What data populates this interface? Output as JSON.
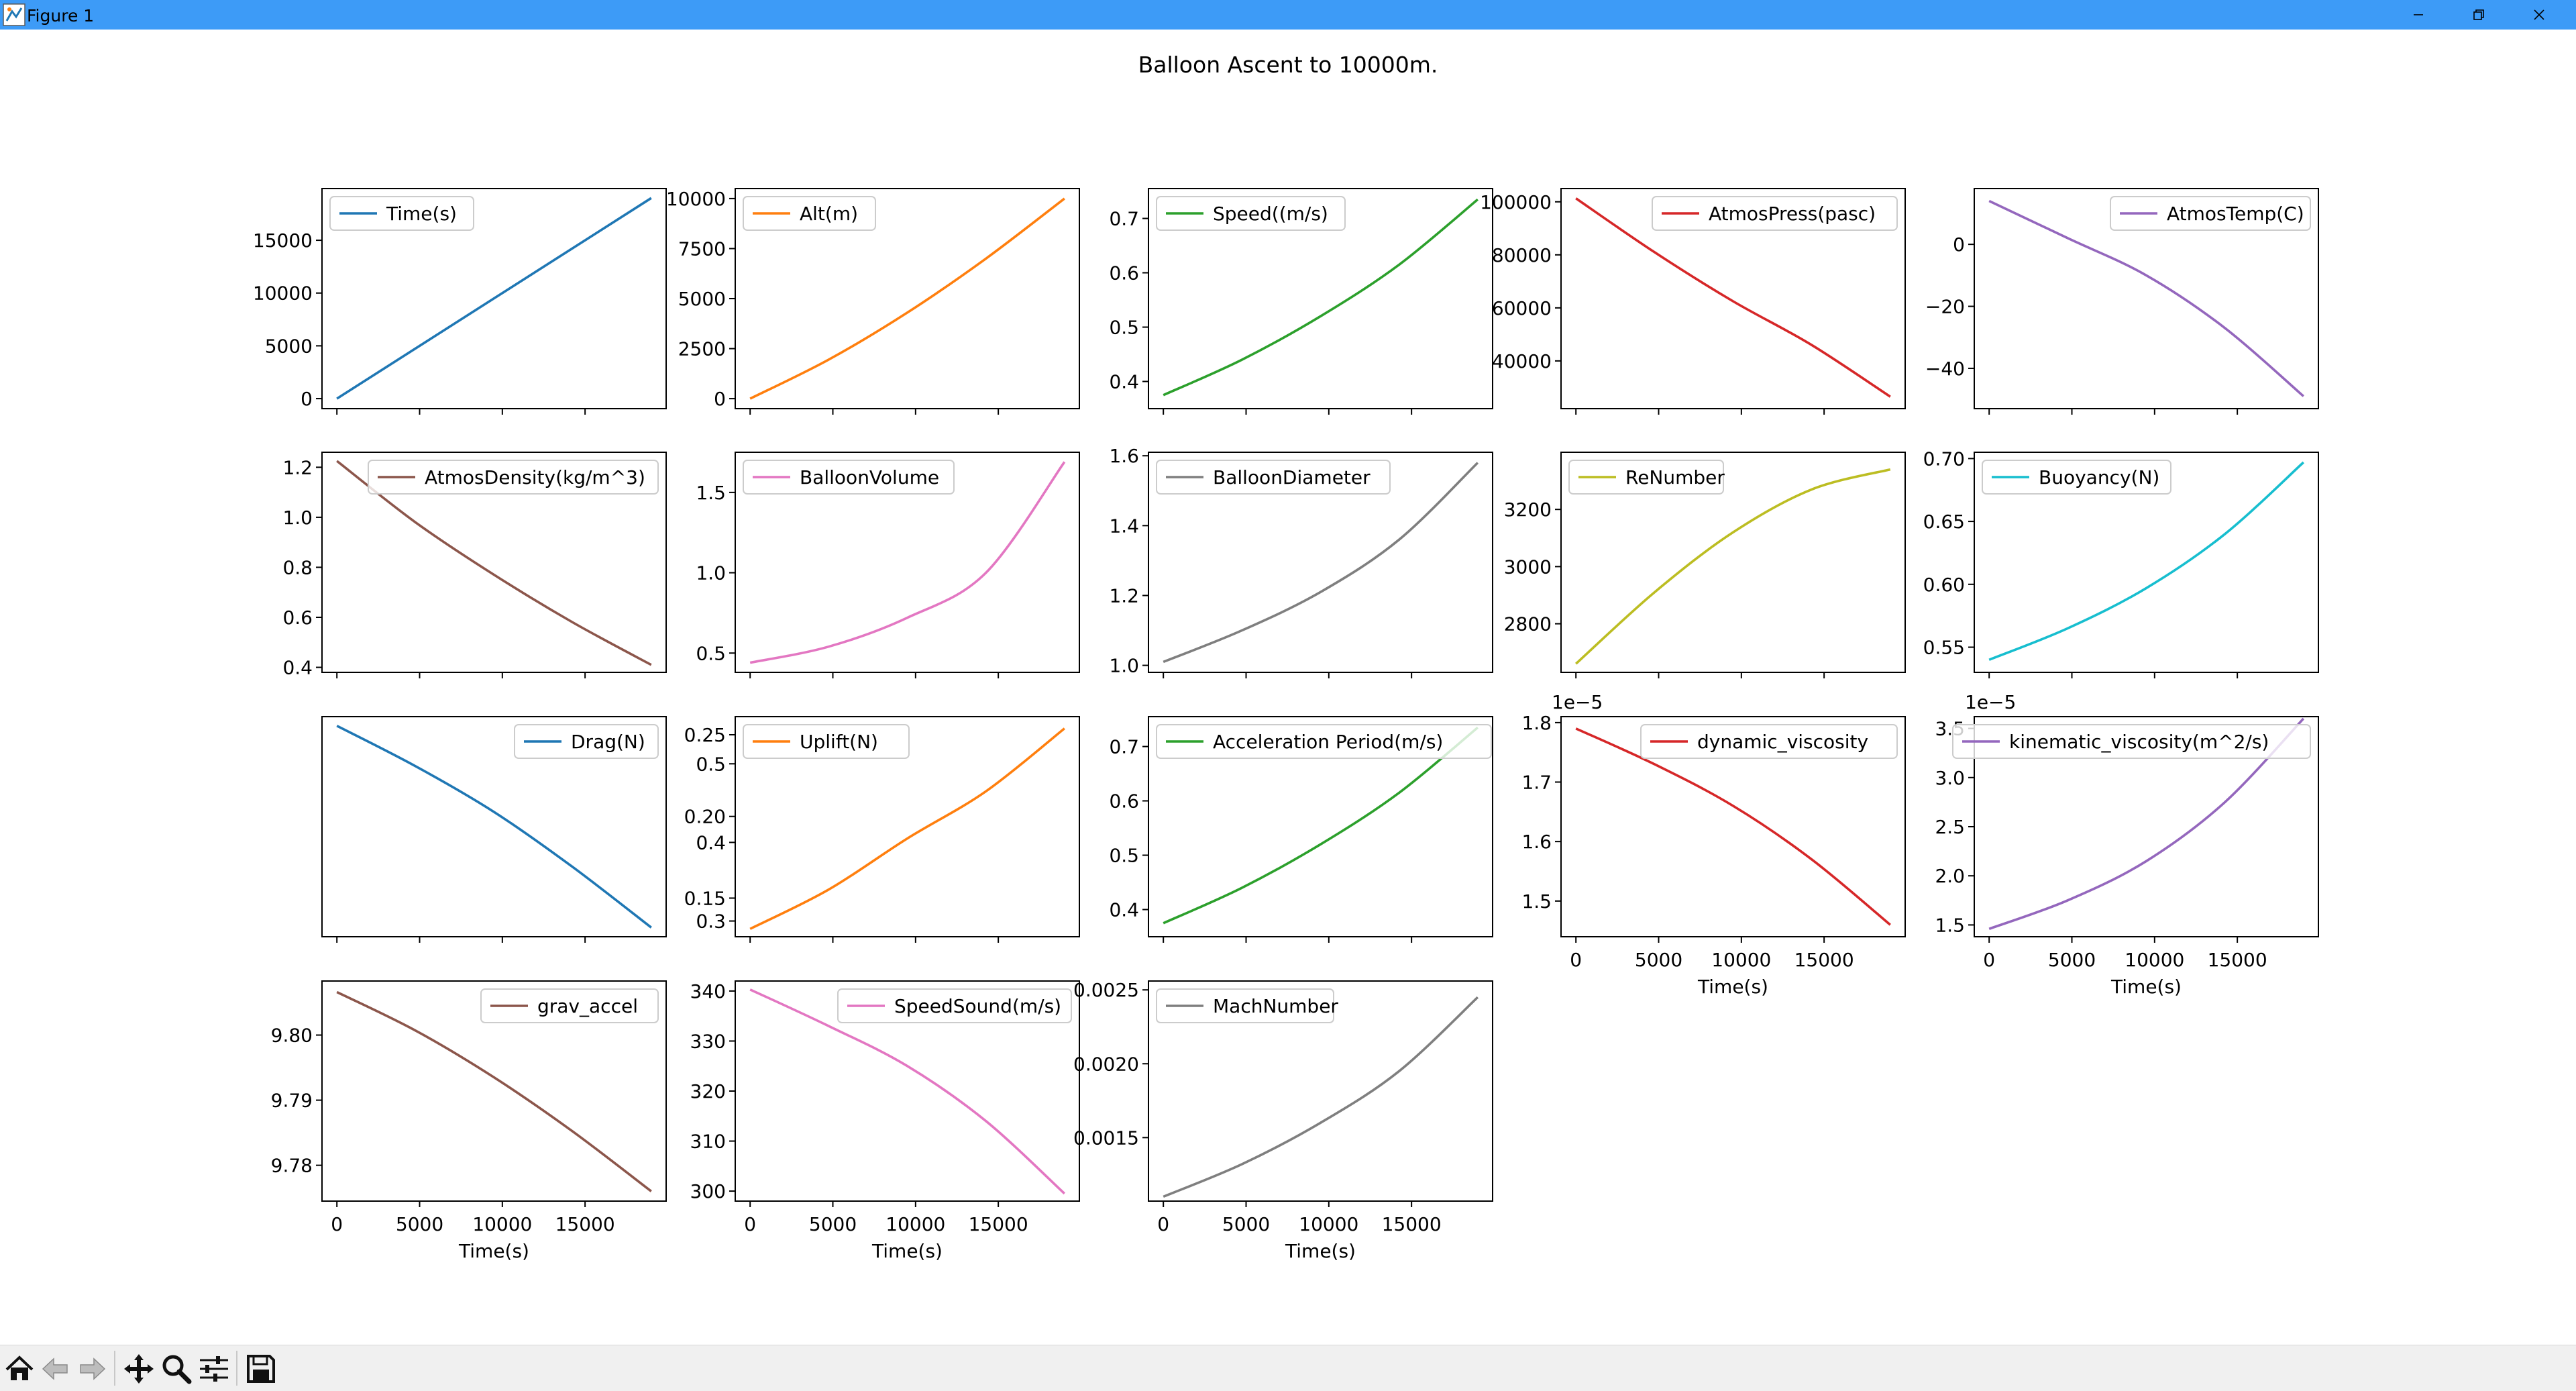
{
  "window": {
    "title": "Figure 1",
    "icon": "matplotlib-figure-icon"
  },
  "toolbar": {
    "items": [
      {
        "name": "home-button",
        "icon": "home-icon"
      },
      {
        "name": "back-button",
        "icon": "arrow-left-icon"
      },
      {
        "name": "forward-button",
        "icon": "arrow-right-icon"
      },
      {
        "name": "pan-button",
        "icon": "move-icon"
      },
      {
        "name": "zoom-button",
        "icon": "magnifier-icon"
      },
      {
        "name": "subplots-button",
        "icon": "sliders-icon"
      },
      {
        "name": "save-button",
        "icon": "floppy-disk-icon"
      }
    ]
  },
  "figure": {
    "suptitle": "Balloon Ascent to 10000m."
  },
  "chart_data": [
    {
      "type": "line",
      "legend": "Time(s)",
      "color": "#1f77b4",
      "xlim": [
        -900,
        19900
      ],
      "ylim": [
        -950,
        19900
      ],
      "yticks": [
        {
          "v": 0,
          "l": "0"
        },
        {
          "v": 5000,
          "l": "5000"
        },
        {
          "v": 10000,
          "l": "10000"
        },
        {
          "v": 15000,
          "l": "15000"
        }
      ],
      "xticks": [
        0,
        5000,
        10000,
        15000
      ],
      "xlabel": "",
      "legend_loc": "upper left",
      "x": [
        0,
        19000
      ],
      "y": [
        0,
        19000
      ]
    },
    {
      "type": "line",
      "legend": "Alt(m)",
      "color": "#ff7f0e",
      "xlim": [
        -900,
        19900
      ],
      "ylim": [
        -500,
        10500
      ],
      "yticks": [
        {
          "v": 0,
          "l": "0"
        },
        {
          "v": 2500,
          "l": "2500"
        },
        {
          "v": 5000,
          "l": "5000"
        },
        {
          "v": 7500,
          "l": "7500"
        },
        {
          "v": 10000,
          "l": "10000"
        }
      ],
      "xticks": [
        0,
        5000,
        10000,
        15000
      ],
      "xlabel": "",
      "legend_loc": "upper left",
      "x": [
        0,
        4750,
        9500,
        14250,
        19000
      ],
      "y": [
        0,
        1950,
        4300,
        7000,
        10000
      ]
    },
    {
      "type": "line",
      "legend": "Speed((m/s)",
      "color": "#2ca02c",
      "xlim": [
        -900,
        19900
      ],
      "ylim": [
        0.35,
        0.755
      ],
      "yticks": [
        {
          "v": 0.4,
          "l": "0.4"
        },
        {
          "v": 0.5,
          "l": "0.5"
        },
        {
          "v": 0.6,
          "l": "0.6"
        },
        {
          "v": 0.7,
          "l": "0.7"
        }
      ],
      "xticks": [
        0,
        5000,
        10000,
        15000
      ],
      "xlabel": "",
      "legend_loc": "upper left",
      "x": [
        0,
        4750,
        9500,
        14250,
        19000
      ],
      "y": [
        0.375,
        0.44,
        0.52,
        0.615,
        0.735
      ]
    },
    {
      "type": "line",
      "legend": "AtmosPress(pasc)",
      "color": "#d62728",
      "xlim": [
        -900,
        19900
      ],
      "ylim": [
        22000,
        105000
      ],
      "yticks": [
        {
          "v": 40000,
          "l": "40000"
        },
        {
          "v": 60000,
          "l": "60000"
        },
        {
          "v": 80000,
          "l": "80000"
        },
        {
          "v": 100000,
          "l": "100000"
        }
      ],
      "xticks": [
        0,
        5000,
        10000,
        15000
      ],
      "xlabel": "",
      "legend_loc": "upper right",
      "x": [
        0,
        4750,
        9500,
        14250,
        19000
      ],
      "y": [
        101300,
        81000,
        62500,
        46000,
        26500
      ]
    },
    {
      "type": "line",
      "legend": "AtmosTemp(C)",
      "color": "#9467bd",
      "xlim": [
        -900,
        19900
      ],
      "ylim": [
        -53,
        18
      ],
      "yticks": [
        {
          "v": -40,
          "l": "−40"
        },
        {
          "v": -20,
          "l": "−20"
        },
        {
          "v": 0,
          "l": "0"
        }
      ],
      "xticks": [
        0,
        5000,
        10000,
        15000
      ],
      "xlabel": "",
      "legend_loc": "upper right",
      "x": [
        0,
        4750,
        9500,
        14250,
        19000
      ],
      "y": [
        14,
        2,
        -10,
        -27,
        -49
      ]
    },
    {
      "type": "line",
      "legend": "AtmosDensity(kg/m^3)",
      "color": "#8c564b",
      "xlim": [
        -900,
        19900
      ],
      "ylim": [
        0.38,
        1.26
      ],
      "yticks": [
        {
          "v": 0.4,
          "l": "0.4"
        },
        {
          "v": 0.6,
          "l": "0.6"
        },
        {
          "v": 0.8,
          "l": "0.8"
        },
        {
          "v": 1.0,
          "l": "1.0"
        },
        {
          "v": 1.2,
          "l": "1.2"
        }
      ],
      "xticks": [
        0,
        5000,
        10000,
        15000
      ],
      "xlabel": "",
      "legend_loc": "upper right",
      "x": [
        0,
        4750,
        9500,
        14250,
        19000
      ],
      "y": [
        1.225,
        0.98,
        0.77,
        0.58,
        0.41
      ]
    },
    {
      "type": "line",
      "legend": "BalloonVolume",
      "color": "#e377c2",
      "xlim": [
        -900,
        19900
      ],
      "ylim": [
        0.38,
        1.75
      ],
      "yticks": [
        {
          "v": 0.5,
          "l": "0.5"
        },
        {
          "v": 1.0,
          "l": "1.0"
        },
        {
          "v": 1.5,
          "l": "1.5"
        }
      ],
      "xticks": [
        0,
        5000,
        10000,
        15000
      ],
      "xlabel": "",
      "legend_loc": "upper left",
      "x": [
        0,
        4750,
        9500,
        14250,
        19000
      ],
      "y": [
        0.44,
        0.54,
        0.72,
        1.0,
        1.69
      ]
    },
    {
      "type": "line",
      "legend": "BalloonDiameter",
      "color": "#7f7f7f",
      "xlim": [
        -900,
        19900
      ],
      "ylim": [
        0.98,
        1.61
      ],
      "yticks": [
        {
          "v": 1.0,
          "l": "1.0"
        },
        {
          "v": 1.2,
          "l": "1.2"
        },
        {
          "v": 1.4,
          "l": "1.4"
        },
        {
          "v": 1.6,
          "l": "1.6"
        }
      ],
      "xticks": [
        0,
        5000,
        10000,
        15000
      ],
      "xlabel": "",
      "legend_loc": "upper left",
      "x": [
        0,
        4750,
        9500,
        14250,
        19000
      ],
      "y": [
        1.01,
        1.1,
        1.21,
        1.36,
        1.58
      ]
    },
    {
      "type": "line",
      "legend": "ReNumber",
      "color": "#bcbd22",
      "xlim": [
        -900,
        19900
      ],
      "ylim": [
        2630,
        3400
      ],
      "yticks": [
        {
          "v": 2800,
          "l": "2800"
        },
        {
          "v": 3000,
          "l": "3000"
        },
        {
          "v": 3200,
          "l": "3200"
        }
      ],
      "xticks": [
        0,
        5000,
        10000,
        15000
      ],
      "xlabel": "",
      "legend_loc": "upper left",
      "x": [
        0,
        4750,
        9500,
        14250,
        19000
      ],
      "y": [
        2660,
        2910,
        3120,
        3270,
        3340
      ]
    },
    {
      "type": "line",
      "legend": "Buoyancy(N)",
      "color": "#17becf",
      "xlim": [
        -900,
        19900
      ],
      "ylim": [
        0.53,
        0.705
      ],
      "yticks": [
        {
          "v": 0.55,
          "l": "0.55"
        },
        {
          "v": 0.6,
          "l": "0.60"
        },
        {
          "v": 0.65,
          "l": "0.65"
        },
        {
          "v": 0.7,
          "l": "0.70"
        }
      ],
      "xticks": [
        0,
        5000,
        10000,
        15000
      ],
      "xlabel": "",
      "legend_loc": "upper left",
      "x": [
        0,
        4750,
        9500,
        14250,
        19000
      ],
      "y": [
        0.54,
        0.565,
        0.597,
        0.64,
        0.697
      ]
    },
    {
      "type": "line",
      "legend": "Drag(N)",
      "color": "#1f77b4",
      "xlim": [
        -900,
        19900
      ],
      "ylim": [
        0.01,
        0.13
      ],
      "yticks": [],
      "xticks": [
        0,
        5000,
        10000,
        15000
      ],
      "xlabel": "",
      "legend_loc": "upper right",
      "x": [
        0,
        4750,
        9500,
        14250,
        19000
      ],
      "y": [
        0.125,
        0.103,
        0.078,
        0.048,
        0.015
      ]
    },
    {
      "type": "line",
      "legend": "Uplift(N)",
      "color": "#ff7f0e",
      "xlim": [
        -900,
        19900
      ],
      "ylim": [
        0.28,
        0.56
      ],
      "yticks": [
        {
          "v": 0.3,
          "l": "0.3"
        },
        {
          "v": 0.4,
          "l": "0.4"
        },
        {
          "v": 0.5,
          "l": "0.5"
        }
      ],
      "xticks": [
        0,
        5000,
        10000,
        15000
      ],
      "xlabel": "",
      "legend_loc": "upper left",
      "secondary_yticks": [
        {
          "v": 0.15,
          "l": "0.15"
        },
        {
          "v": 0.2,
          "l": "0.20"
        },
        {
          "v": 0.25,
          "l": "0.25"
        }
      ],
      "x": [
        0,
        4750,
        9500,
        14250,
        19000
      ],
      "y": [
        0.29,
        0.34,
        0.405,
        0.465,
        0.545
      ]
    },
    {
      "type": "line",
      "legend": "Acceleration Period(m/s)",
      "color": "#2ca02c",
      "xlim": [
        -900,
        19900
      ],
      "ylim": [
        0.35,
        0.755
      ],
      "yticks": [
        {
          "v": 0.4,
          "l": "0.4"
        },
        {
          "v": 0.5,
          "l": "0.5"
        },
        {
          "v": 0.6,
          "l": "0.6"
        },
        {
          "v": 0.7,
          "l": "0.7"
        }
      ],
      "xticks": [
        0,
        5000,
        10000,
        15000
      ],
      "xlabel": "",
      "legend_loc": "upper left",
      "x": [
        0,
        4750,
        9500,
        14250,
        19000
      ],
      "y": [
        0.375,
        0.44,
        0.52,
        0.615,
        0.735
      ]
    },
    {
      "type": "line",
      "legend": "dynamic_viscosity",
      "color": "#d62728",
      "xlim": [
        -900,
        19900
      ],
      "ylim": [
        1.44,
        1.81
      ],
      "yticks": [
        {
          "v": 1.5,
          "l": "1.5"
        },
        {
          "v": 1.6,
          "l": "1.6"
        },
        {
          "v": 1.7,
          "l": "1.7"
        },
        {
          "v": 1.8,
          "l": "1.8"
        }
      ],
      "offset_label": "1e−5",
      "xticks": [
        0,
        5000,
        10000,
        15000
      ],
      "xlabel": "Time(s)",
      "legend_loc": "upper right",
      "x": [
        0,
        4750,
        9500,
        14250,
        19000
      ],
      "y": [
        1.79,
        1.73,
        1.66,
        1.57,
        1.46
      ]
    },
    {
      "type": "line",
      "legend": "kinematic_viscosity(m^2/s)",
      "color": "#9467bd",
      "xlim": [
        -900,
        19900
      ],
      "ylim": [
        1.38,
        3.62
      ],
      "yticks": [
        {
          "v": 1.5,
          "l": "1.5"
        },
        {
          "v": 2.0,
          "l": "2.0"
        },
        {
          "v": 2.5,
          "l": "2.5"
        },
        {
          "v": 3.0,
          "l": "3.0"
        },
        {
          "v": 3.5,
          "l": "3.5"
        }
      ],
      "offset_label": "1e−5",
      "xticks": [
        0,
        5000,
        10000,
        15000
      ],
      "xlabel": "Time(s)",
      "legend_loc": "upper right",
      "x": [
        0,
        4750,
        9500,
        14250,
        19000
      ],
      "y": [
        1.46,
        1.75,
        2.15,
        2.75,
        3.6
      ]
    },
    {
      "type": "line",
      "legend": "grav_accel",
      "color": "#8c564b",
      "xlim": [
        -900,
        19900
      ],
      "ylim": [
        9.7745,
        9.8083
      ],
      "yticks": [
        {
          "v": 9.78,
          "l": "9.78"
        },
        {
          "v": 9.79,
          "l": "9.79"
        },
        {
          "v": 9.8,
          "l": "9.80"
        }
      ],
      "xticks": [
        {
          "v": 0,
          "l": "0"
        },
        {
          "v": 5000,
          "l": "5000"
        },
        {
          "v": 10000,
          "l": "10000"
        },
        {
          "v": 15000,
          "l": "15000"
        }
      ],
      "xlabel": "Time(s)",
      "legend_loc": "upper right",
      "x": [
        0,
        4750,
        9500,
        14250,
        19000
      ],
      "y": [
        9.8066,
        9.8007,
        9.7935,
        9.7852,
        9.776
      ]
    },
    {
      "type": "line",
      "legend": "SpeedSound(m/s)",
      "color": "#e377c2",
      "xlim": [
        -900,
        19900
      ],
      "ylim": [
        298,
        342
      ],
      "yticks": [
        {
          "v": 300,
          "l": "300"
        },
        {
          "v": 310,
          "l": "310"
        },
        {
          "v": 320,
          "l": "320"
        },
        {
          "v": 330,
          "l": "330"
        },
        {
          "v": 340,
          "l": "340"
        }
      ],
      "xticks": [
        {
          "v": 0,
          "l": "0"
        },
        {
          "v": 5000,
          "l": "5000"
        },
        {
          "v": 10000,
          "l": "10000"
        },
        {
          "v": 15000,
          "l": "15000"
        }
      ],
      "xlabel": "Time(s)",
      "legend_loc": "upper right",
      "x": [
        0,
        4750,
        9500,
        14250,
        19000
      ],
      "y": [
        340.3,
        333,
        325,
        314,
        299.5
      ]
    },
    {
      "type": "line",
      "legend": "MachNumber",
      "color": "#7f7f7f",
      "xlim": [
        -900,
        19900
      ],
      "ylim": [
        0.00107,
        0.00256
      ],
      "yticks": [
        {
          "v": 0.0015,
          "l": "0.0015"
        },
        {
          "v": 0.002,
          "l": "0.0020"
        },
        {
          "v": 0.0025,
          "l": "0.0025"
        }
      ],
      "xticks": [
        {
          "v": 0,
          "l": "0"
        },
        {
          "v": 5000,
          "l": "5000"
        },
        {
          "v": 10000,
          "l": "10000"
        },
        {
          "v": 15000,
          "l": "15000"
        }
      ],
      "xlabel": "Time(s)",
      "legend_loc": "upper left",
      "x": [
        0,
        4750,
        9500,
        14250,
        19000
      ],
      "y": [
        0.0011,
        0.00132,
        0.0016,
        0.00195,
        0.00245
      ]
    }
  ]
}
